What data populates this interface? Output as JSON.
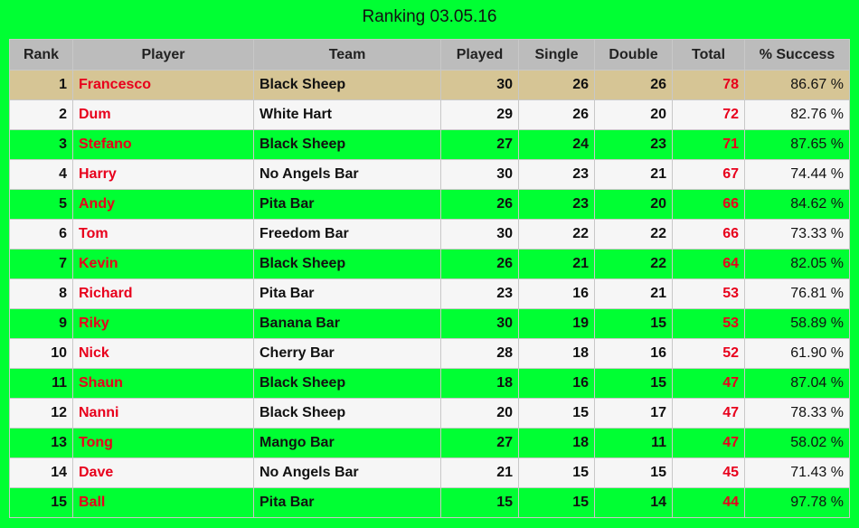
{
  "title": "Ranking 03.05.16",
  "columns": [
    "Rank",
    "Player",
    "Team",
    "Played",
    "Single",
    "Double",
    "Total",
    "% Success"
  ],
  "rows": [
    {
      "rank": "1",
      "player": "Francesco",
      "team": "Black Sheep",
      "played": "30",
      "single": "26",
      "double": "26",
      "total": "78",
      "success": "86.67 %"
    },
    {
      "rank": "2",
      "player": "Dum",
      "team": "White Hart",
      "played": "29",
      "single": "26",
      "double": "20",
      "total": "72",
      "success": "82.76 %"
    },
    {
      "rank": "3",
      "player": "Stefano",
      "team": "Black Sheep",
      "played": "27",
      "single": "24",
      "double": "23",
      "total": "71",
      "success": "87.65 %"
    },
    {
      "rank": "4",
      "player": "Harry",
      "team": "No Angels Bar",
      "played": "30",
      "single": "23",
      "double": "21",
      "total": "67",
      "success": "74.44 %"
    },
    {
      "rank": "5",
      "player": "Andy",
      "team": "Pita Bar",
      "played": "26",
      "single": "23",
      "double": "20",
      "total": "66",
      "success": "84.62 %"
    },
    {
      "rank": "6",
      "player": "Tom",
      "team": "Freedom Bar",
      "played": "30",
      "single": "22",
      "double": "22",
      "total": "66",
      "success": "73.33 %"
    },
    {
      "rank": "7",
      "player": "Kevin",
      "team": "Black Sheep",
      "played": "26",
      "single": "21",
      "double": "22",
      "total": "64",
      "success": "82.05 %"
    },
    {
      "rank": "8",
      "player": "Richard",
      "team": "Pita Bar",
      "played": "23",
      "single": "16",
      "double": "21",
      "total": "53",
      "success": "76.81 %"
    },
    {
      "rank": "9",
      "player": "Riky",
      "team": "Banana Bar",
      "played": "30",
      "single": "19",
      "double": "15",
      "total": "53",
      "success": "58.89 %"
    },
    {
      "rank": "10",
      "player": "Nick",
      "team": "Cherry Bar",
      "played": "28",
      "single": "18",
      "double": "16",
      "total": "52",
      "success": "61.90 %"
    },
    {
      "rank": "11",
      "player": "Shaun",
      "team": "Black Sheep",
      "played": "18",
      "single": "16",
      "double": "15",
      "total": "47",
      "success": "87.04 %"
    },
    {
      "rank": "12",
      "player": "Nanni",
      "team": "Black Sheep",
      "played": "20",
      "single": "15",
      "double": "17",
      "total": "47",
      "success": "78.33 %"
    },
    {
      "rank": "13",
      "player": "Tong",
      "team": "Mango Bar",
      "played": "27",
      "single": "18",
      "double": "11",
      "total": "47",
      "success": "58.02 %"
    },
    {
      "rank": "14",
      "player": "Dave",
      "team": "No Angels Bar",
      "played": "21",
      "single": "15",
      "double": "15",
      "total": "45",
      "success": "71.43 %"
    },
    {
      "rank": "15",
      "player": "Ball",
      "team": "Pita Bar",
      "played": "15",
      "single": "15",
      "double": "14",
      "total": "44",
      "success": "97.78 %"
    }
  ],
  "colors": {
    "page_background": "#00ff33",
    "header_background": "#bcbcbc",
    "first_row_background": "#d6c595",
    "white_row_background": "#f6f6f6",
    "highlight_text": "#e8001c"
  }
}
